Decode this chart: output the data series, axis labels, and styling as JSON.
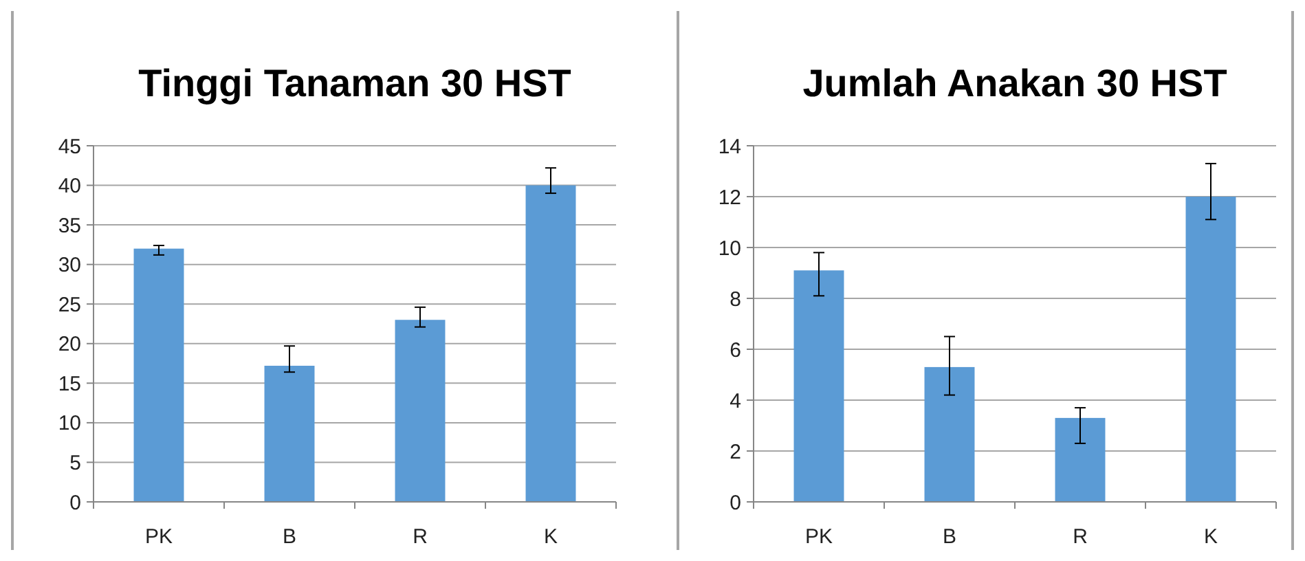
{
  "chart_data": [
    {
      "type": "bar",
      "title": "Tinggi Tanaman 30 HST",
      "categories": [
        "PK",
        "B",
        "R",
        "K"
      ],
      "values": [
        32,
        17.2,
        23,
        40
      ],
      "errors": [
        [
          31.2,
          32.4
        ],
        [
          16.4,
          19.7
        ],
        [
          22.1,
          24.6
        ],
        [
          39.0,
          42.2
        ]
      ],
      "color": "#5b9bd5",
      "ylim": [
        0,
        45
      ],
      "yticks": [
        0,
        5,
        10,
        15,
        20,
        25,
        30,
        35,
        40,
        45
      ],
      "grid": "y"
    },
    {
      "type": "bar",
      "title": "Jumlah Anakan 30 HST",
      "categories": [
        "PK",
        "B",
        "R",
        "K"
      ],
      "values": [
        9.1,
        5.3,
        3.3,
        12
      ],
      "errors": [
        [
          8.1,
          9.8
        ],
        [
          4.2,
          6.5
        ],
        [
          2.3,
          3.7
        ],
        [
          11.1,
          13.3
        ]
      ],
      "color": "#5b9bd5",
      "ylim": [
        0,
        14
      ],
      "yticks": [
        0,
        2,
        4,
        6,
        8,
        10,
        12,
        14
      ],
      "grid": "y"
    }
  ]
}
